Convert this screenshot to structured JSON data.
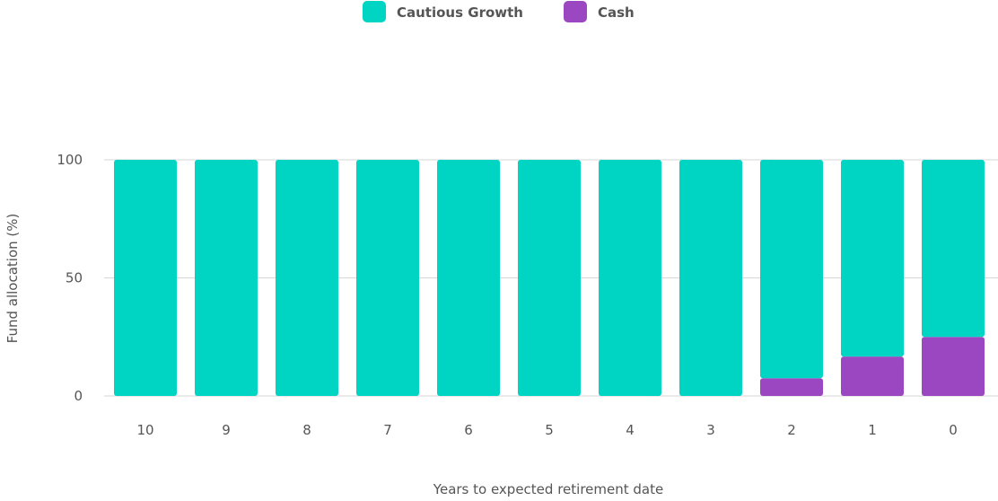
{
  "chart_data": {
    "type": "bar",
    "stacked": true,
    "title": "",
    "xlabel": "Years to expected retirement date",
    "ylabel": "Fund allocation (%)",
    "categories": [
      "10",
      "9",
      "8",
      "7",
      "6",
      "5",
      "4",
      "3",
      "2",
      "1",
      "0"
    ],
    "series": [
      {
        "name": "Cautious Growth",
        "color": "#00d5c3",
        "values": [
          100,
          100,
          100,
          100,
          100,
          100,
          100,
          100,
          92.5,
          83.3,
          75
        ]
      },
      {
        "name": "Cash",
        "color": "#9a47c1",
        "values": [
          0,
          0,
          0,
          0,
          0,
          0,
          0,
          0,
          7.5,
          16.7,
          25
        ]
      }
    ],
    "ylim": [
      0,
      100
    ],
    "yticks": [
      0,
      50,
      100
    ],
    "grid": true,
    "legend_position": "top-center"
  },
  "colors": {
    "text": "#555555",
    "grid": "#d6d6d6"
  }
}
